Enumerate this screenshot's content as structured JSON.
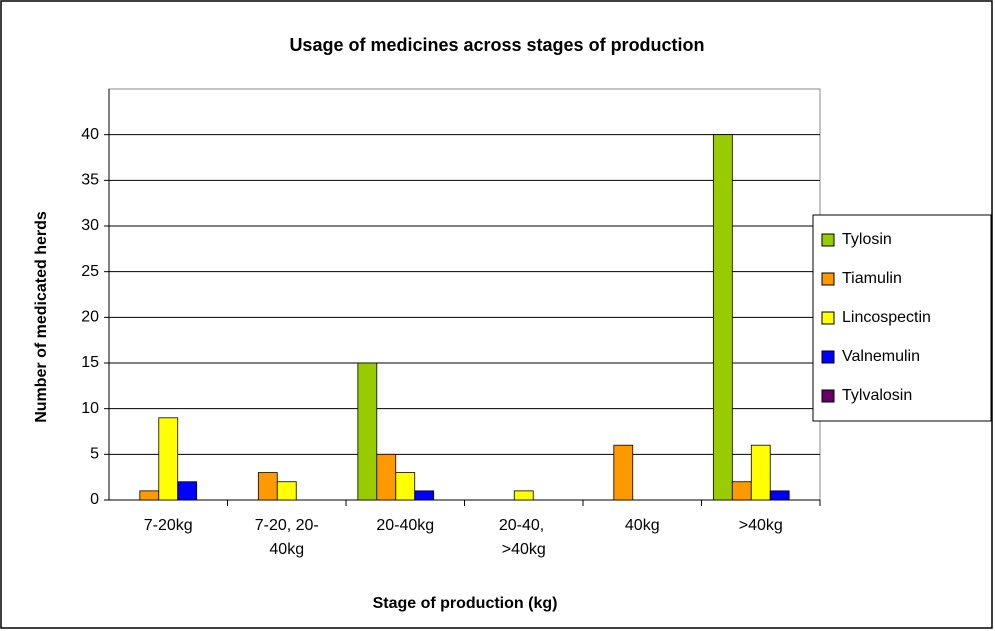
{
  "chart_data": {
    "type": "bar",
    "title": "Usage of medicines across stages of production",
    "x_label": "Stage of production (kg)",
    "y_label": "Number of medicated herds",
    "categories": [
      "7-20kg",
      "7-20, 20-40kg",
      "20-40kg",
      "20-40, >40kg",
      "40kg",
      ">40kg"
    ],
    "series": [
      {
        "name": "Tylosin",
        "color": "#99cc00",
        "values": [
          0,
          0,
          15,
          0,
          0,
          40
        ]
      },
      {
        "name": "Tiamulin",
        "color": "#ff9900",
        "values": [
          1,
          3,
          5,
          0,
          6,
          2
        ]
      },
      {
        "name": "Lincospectin",
        "color": "#ffff00",
        "values": [
          9,
          2,
          3,
          1,
          0,
          6
        ]
      },
      {
        "name": "Valnemulin",
        "color": "#0000ff",
        "values": [
          2,
          0,
          1,
          0,
          0,
          1
        ]
      },
      {
        "name": "Tylvalosin",
        "color": "#660066",
        "values": [
          0,
          0,
          0,
          0,
          0,
          0
        ]
      }
    ],
    "ylim": [
      0,
      45
    ],
    "yticks": [
      0,
      5,
      10,
      15,
      20,
      25,
      30,
      35,
      40
    ],
    "grid": true
  }
}
